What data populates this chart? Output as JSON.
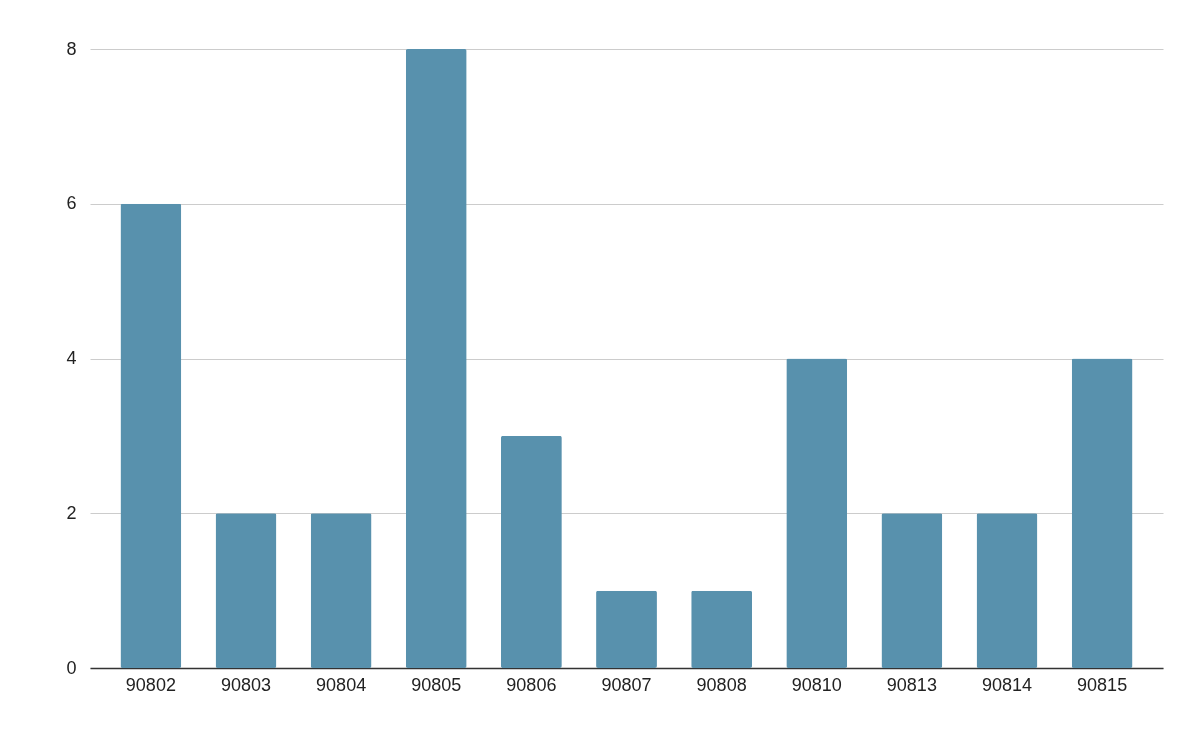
{
  "chart_data": {
    "type": "bar",
    "categories": [
      "90802",
      "90803",
      "90804",
      "90805",
      "90806",
      "90807",
      "90808",
      "90810",
      "90813",
      "90814",
      "90815"
    ],
    "values": [
      6,
      2,
      2,
      8,
      3,
      1,
      1,
      4,
      2,
      2,
      4
    ],
    "color": "#5891ad",
    "ylim": [
      0,
      8
    ],
    "yticks": [
      0,
      2,
      4,
      6,
      8
    ],
    "grid": "y"
  }
}
